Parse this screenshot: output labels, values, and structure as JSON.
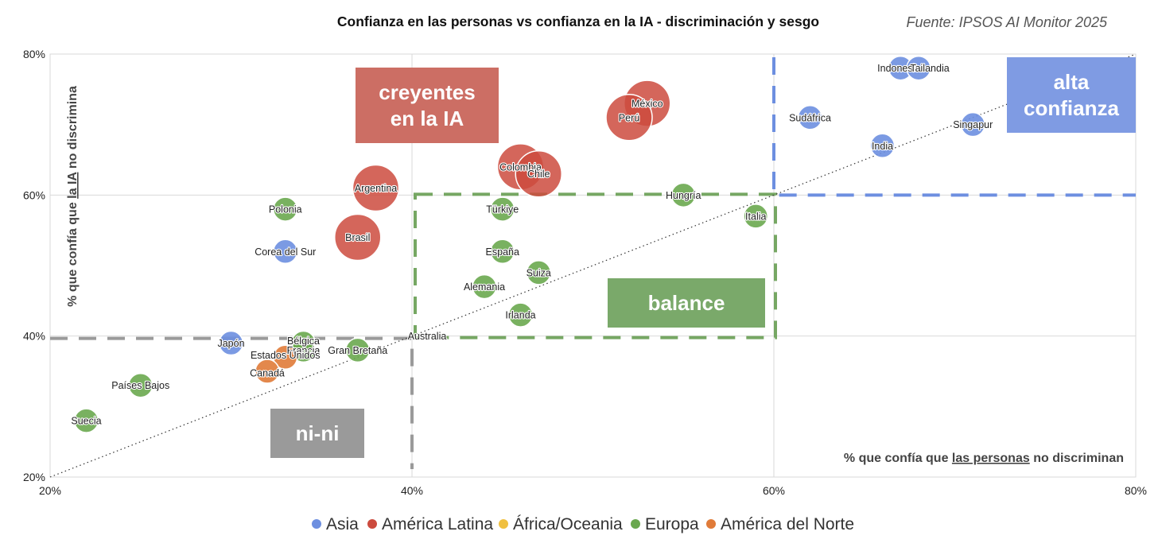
{
  "chart_data": {
    "type": "scatter",
    "title": "Confianza en las personas vs confianza en la IA - discriminación y sesgo",
    "source": "Fuente: IPSOS AI Monitor 2025",
    "xlabel": {
      "pre": "% que confía que ",
      "underlined": "las personas",
      "post": " no discriminan"
    },
    "ylabel": {
      "pre": "% que confía que ",
      "underlined": "la IA",
      "post": " no discrimina"
    },
    "xlim": [
      0.2,
      0.8
    ],
    "ylim": [
      0.2,
      0.8
    ],
    "x_ticks": [
      0.2,
      0.4,
      0.6,
      0.8
    ],
    "y_ticks": [
      0.2,
      0.4,
      0.6,
      0.8
    ],
    "x_tick_labels": [
      "20%",
      "40%",
      "60%",
      "80%"
    ],
    "y_tick_labels": [
      "20%",
      "40%",
      "60%",
      "80%"
    ],
    "grid": true,
    "legend_position": "bottom",
    "colors": {
      "Asia": "#6d8fe0",
      "América Latina": "#cc4b3e",
      "África/Oceania": "#f0c040",
      "Europa": "#6aa84f",
      "América del Norte": "#e07b39"
    },
    "series": [
      {
        "name": "Asia",
        "points": [
          {
            "label": "Indonesia",
            "x": 0.67,
            "y": 0.78
          },
          {
            "label": "Tailandia",
            "x": 0.68,
            "y": 0.78
          },
          {
            "label": "Sudáfrica",
            "x": 0.62,
            "y": 0.71
          },
          {
            "label": "Singapur",
            "x": 0.71,
            "y": 0.7
          },
          {
            "label": "India",
            "x": 0.66,
            "y": 0.67
          },
          {
            "label": "Corea del Sur",
            "x": 0.33,
            "y": 0.52
          },
          {
            "label": "Japón",
            "x": 0.3,
            "y": 0.39
          }
        ]
      },
      {
        "name": "América Latina",
        "points": [
          {
            "label": "México",
            "x": 0.53,
            "y": 0.73
          },
          {
            "label": "Perú",
            "x": 0.52,
            "y": 0.71
          },
          {
            "label": "Colombia",
            "x": 0.46,
            "y": 0.64
          },
          {
            "label": "Chile",
            "x": 0.47,
            "y": 0.63
          },
          {
            "label": "Argentina",
            "x": 0.38,
            "y": 0.61
          },
          {
            "label": "Brasil",
            "x": 0.37,
            "y": 0.54
          }
        ]
      },
      {
        "name": "África/Oceania",
        "points": [
          {
            "label": "Australia",
            "x": 0.4,
            "y": 0.4
          }
        ]
      },
      {
        "name": "Europa",
        "points": [
          {
            "label": "Hungría",
            "x": 0.55,
            "y": 0.6
          },
          {
            "label": "Italia",
            "x": 0.59,
            "y": 0.57
          },
          {
            "label": "Polonia",
            "x": 0.33,
            "y": 0.58
          },
          {
            "label": "Türkiye",
            "x": 0.45,
            "y": 0.58
          },
          {
            "label": "España",
            "x": 0.45,
            "y": 0.52
          },
          {
            "label": "Suiza",
            "x": 0.47,
            "y": 0.49
          },
          {
            "label": "Alemania",
            "x": 0.44,
            "y": 0.47
          },
          {
            "label": "Irlanda",
            "x": 0.46,
            "y": 0.43
          },
          {
            "label": "Bélgica",
            "x": 0.34,
            "y": 0.39
          },
          {
            "label": "Francia",
            "x": 0.34,
            "y": 0.38
          },
          {
            "label": "Gran Bretaña",
            "x": 0.37,
            "y": 0.38
          },
          {
            "label": "Países Bajos",
            "x": 0.25,
            "y": 0.33
          },
          {
            "label": "Suecia",
            "x": 0.22,
            "y": 0.28
          }
        ]
      },
      {
        "name": "América del Norte",
        "points": [
          {
            "label": "Estados Unidos",
            "x": 0.33,
            "y": 0.37
          },
          {
            "label": "Canadá",
            "x": 0.32,
            "y": 0.35
          }
        ]
      }
    ],
    "trendline": {
      "style": "dotted",
      "from": [
        0.2,
        0.2
      ],
      "to": [
        0.8,
        0.8
      ]
    },
    "quadrants": [
      {
        "name": "creyentes en la IA",
        "label": [
          "creyentes",
          "en la IA"
        ],
        "color": "#cc6e64"
      },
      {
        "name": "alta confianza",
        "label": [
          "alta",
          "confianza"
        ],
        "color": "#7f9be3",
        "x0": 0.6,
        "y0": 0.6,
        "x1": 0.8,
        "y1": 0.8,
        "border_color": "#6d8fe0"
      },
      {
        "name": "balance",
        "label": [
          "balance"
        ],
        "color": "#7aa96a",
        "x0": 0.4,
        "y0": 0.4,
        "x1": 0.6,
        "y1": 0.6,
        "border_color": "#76a763"
      },
      {
        "name": "ni-ni",
        "label": [
          "ni-ni"
        ],
        "color": "#9a9a9a",
        "x0": 0.2,
        "y0": 0.2,
        "x1": 0.4,
        "y1": 0.4,
        "border_color": "#9a9a9a"
      }
    ]
  }
}
